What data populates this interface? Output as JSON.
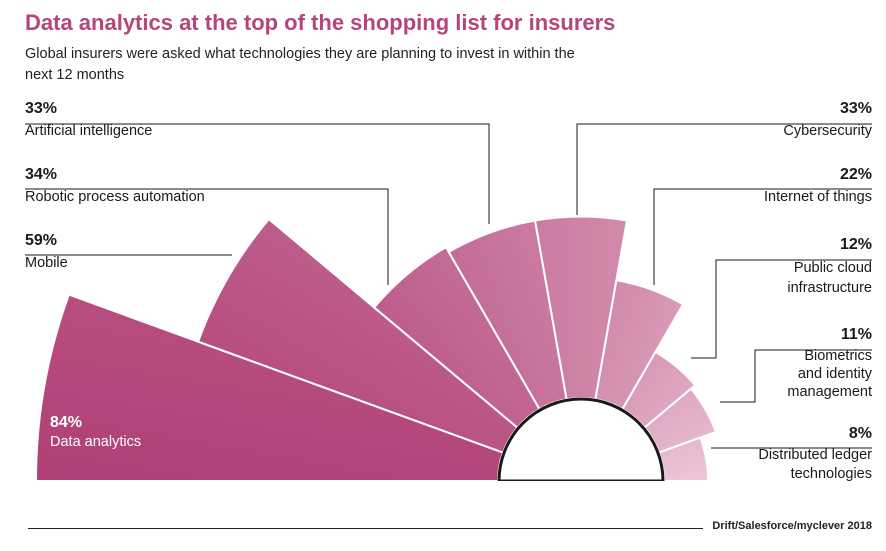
{
  "title": "Data analytics at the top of the shopping list for insurers",
  "subtitle": "Global insurers were asked what technologies they are planning to invest in within the next 12 months",
  "source": "Drift/Salesforce/myclever 2018",
  "colors": {
    "accent": "#b5457a",
    "dark_segment": "#b03f75",
    "light_segment": "#ecc6d8"
  },
  "chart_data": {
    "type": "polar-bar",
    "unit": "%",
    "categories": [
      "Data analytics",
      "Mobile",
      "Robotic process automation",
      "Artificial intelligence",
      "Cybersecurity",
      "Internet of things",
      "Public cloud infrastructure",
      "Biometrics and identity management",
      "Distributed ledger technologies"
    ],
    "values": [
      84,
      59,
      34,
      33,
      33,
      22,
      12,
      11,
      8
    ],
    "labels": [
      {
        "pct": "84%",
        "lines": [
          "Data analytics"
        ]
      },
      {
        "pct": "59%",
        "lines": [
          "Mobile"
        ]
      },
      {
        "pct": "34%",
        "lines": [
          "Robotic process automation"
        ]
      },
      {
        "pct": "33%",
        "lines": [
          "Artificial intelligence"
        ]
      },
      {
        "pct": "33%",
        "lines": [
          "Cybersecurity"
        ]
      },
      {
        "pct": "22%",
        "lines": [
          "Internet of things"
        ]
      },
      {
        "pct": "12%",
        "lines": [
          "Public cloud",
          "infrastructure"
        ]
      },
      {
        "pct": "11%",
        "lines": [
          "Biometrics",
          "and identity",
          "management"
        ]
      },
      {
        "pct": "8%",
        "lines": [
          "Distributed ledger",
          "technologies"
        ]
      }
    ]
  }
}
